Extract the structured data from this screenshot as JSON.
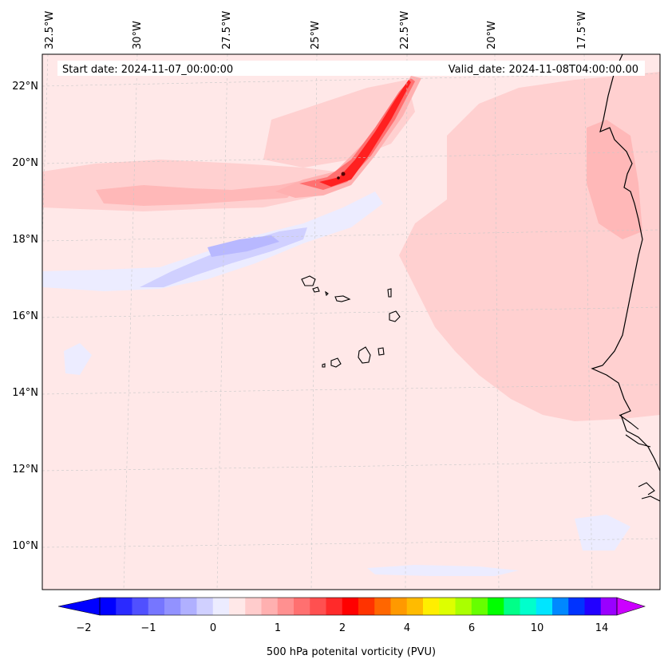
{
  "map": {
    "start_date_label": "Start date: 2024-11-07_00:00:00",
    "valid_date_label": "Valid_date: 2024-11-08T04:00:00.00",
    "lon_labels": [
      "32.5°W",
      "30°W",
      "27.5°W",
      "25°W",
      "22.5°W",
      "20°W",
      "17.5°W"
    ],
    "lat_labels": [
      "22°N",
      "20°N",
      "18°N",
      "16°N",
      "14°N",
      "12°N",
      "10°N"
    ],
    "background_color": "#ffe8e8",
    "coastline_color": "#000000"
  },
  "colorbar": {
    "label": "500 hPa potenital vorticity (PVU)",
    "tick_labels": [
      "−2",
      "−1",
      "0",
      "1",
      "2",
      "4",
      "6",
      "10",
      "14"
    ],
    "colors": [
      "#0000ff",
      "#2a2aff",
      "#5050ff",
      "#7676ff",
      "#9292ff",
      "#b0b0ff",
      "#d0d0ff",
      "#ececff",
      "#ffe8e8",
      "#ffcccc",
      "#ffb0b0",
      "#ff9090",
      "#ff7070",
      "#ff5050",
      "#ff2a2a",
      "#ff0000",
      "#ff3300",
      "#ff6600",
      "#ff9900",
      "#ffbb00",
      "#ffee00",
      "#ddff00",
      "#aaff00",
      "#66ff00",
      "#00ff00",
      "#00ff88",
      "#00ffcc",
      "#00e5ff",
      "#0088ff",
      "#0033ff",
      "#2200ff",
      "#9900ff"
    ],
    "under_color": "#0000ff",
    "over_color": "#cc00ff"
  }
}
